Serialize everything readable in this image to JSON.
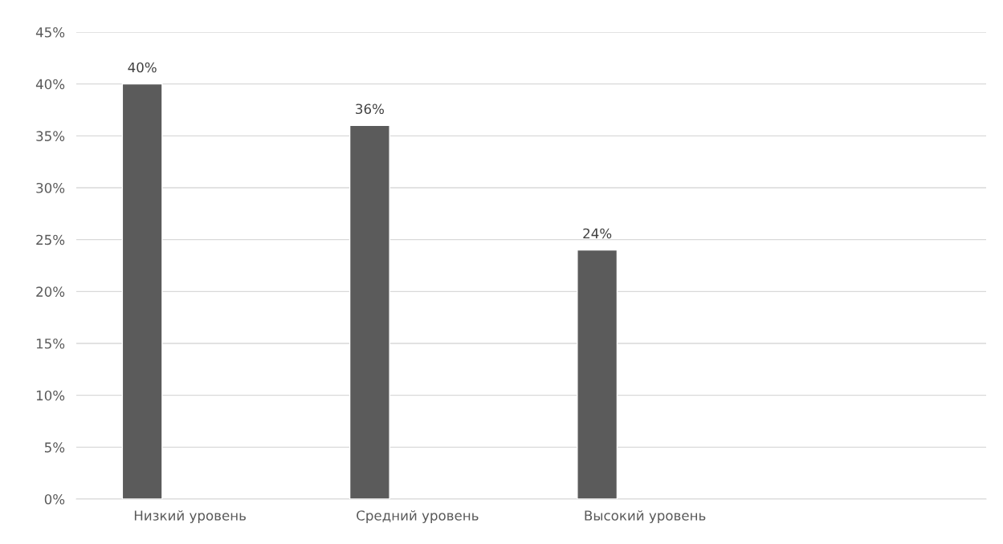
{
  "chart_data": {
    "type": "bar",
    "categories": [
      "Низкий уровень",
      "Средний уровень",
      "Высокий уровень",
      null
    ],
    "values": [
      40,
      36,
      24,
      null
    ],
    "value_labels": [
      "40%",
      "36%",
      "24%",
      null
    ],
    "color": "#5b5b5b",
    "ylim": [
      0,
      45
    ],
    "yticks": [
      {
        "value": 0,
        "label": "0%"
      },
      {
        "value": 5,
        "label": "5%"
      },
      {
        "value": 10,
        "label": "10%"
      },
      {
        "value": 15,
        "label": "15%"
      },
      {
        "value": 20,
        "label": "20%"
      },
      {
        "value": 25,
        "label": "25%"
      },
      {
        "value": 30,
        "label": "30%"
      },
      {
        "value": 35,
        "label": "35%"
      },
      {
        "value": 40,
        "label": "40%"
      },
      {
        "value": 45,
        "label": "45%"
      }
    ],
    "grid": "y",
    "legend": false
  }
}
